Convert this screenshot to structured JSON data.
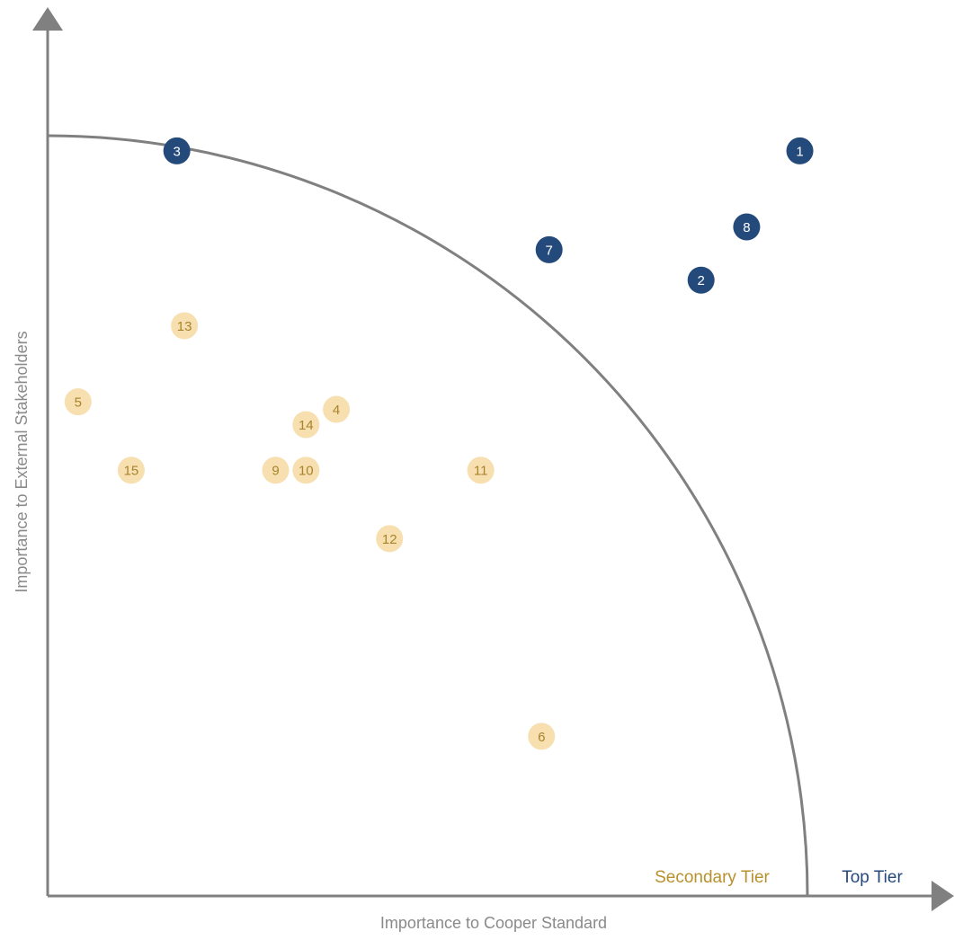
{
  "colors": {
    "axis": "#808080",
    "top_tier_fill": "#244a7c",
    "top_tier_text": "#ffffff",
    "secondary_fill": "#f7dfb0",
    "secondary_text": "#a8832c",
    "secondary_label": "#b8902e",
    "top_label": "#244a7c",
    "axis_title": "#8a8a8a"
  },
  "chart_data": {
    "type": "scatter",
    "xlabel": "Importance to Cooper Standard",
    "ylabel": "Importance to External Stakeholders",
    "xlim": [
      0,
      100
    ],
    "ylim": [
      0,
      100
    ],
    "grid": false,
    "tier_labels": {
      "secondary": "Secondary Tier",
      "top": "Top Tier"
    },
    "boundary": "quarter-circle arc separating Secondary Tier (inside) from Top Tier (outside)",
    "series": [
      {
        "name": "Top Tier",
        "points": [
          {
            "label": "1",
            "x": 99,
            "y": 98
          },
          {
            "label": "2",
            "x": 86,
            "y": 81
          },
          {
            "label": "3",
            "x": 17,
            "y": 98
          },
          {
            "label": "7",
            "x": 66,
            "y": 85
          },
          {
            "label": "8",
            "x": 92,
            "y": 88
          }
        ]
      },
      {
        "name": "Secondary Tier",
        "points": [
          {
            "label": "4",
            "x": 38,
            "y": 64
          },
          {
            "label": "5",
            "x": 4,
            "y": 65
          },
          {
            "label": "6",
            "x": 65,
            "y": 21
          },
          {
            "label": "9",
            "x": 30,
            "y": 56
          },
          {
            "label": "10",
            "x": 34,
            "y": 56
          },
          {
            "label": "11",
            "x": 57,
            "y": 56
          },
          {
            "label": "12",
            "x": 45,
            "y": 47
          },
          {
            "label": "13",
            "x": 18,
            "y": 75
          },
          {
            "label": "14",
            "x": 34,
            "y": 62
          },
          {
            "label": "15",
            "x": 11,
            "y": 56
          }
        ]
      }
    ]
  }
}
